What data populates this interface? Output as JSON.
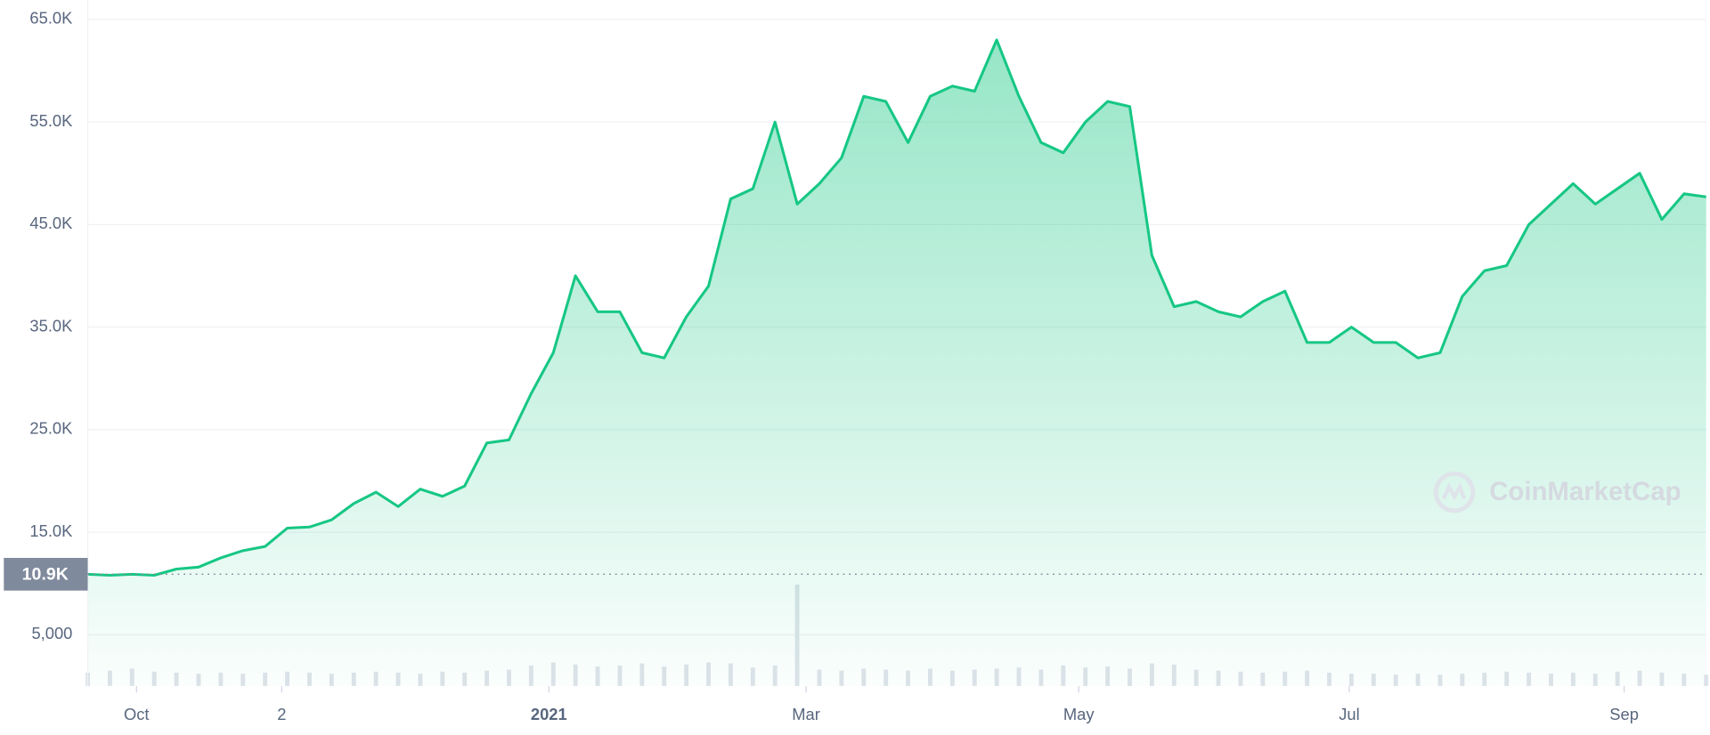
{
  "chart_data": {
    "type": "area",
    "color": "#16c784",
    "volume_color": "#dfe3ea",
    "grid": true,
    "values": [
      10900,
      10800,
      10900,
      10800,
      11400,
      11600,
      12500,
      13200,
      13600,
      15400,
      15500,
      16200,
      17800,
      18900,
      17500,
      19200,
      18500,
      19500,
      23700,
      24000,
      28500,
      32500,
      40000,
      36500,
      36500,
      32500,
      32000,
      36000,
      39000,
      47500,
      48500,
      55000,
      47000,
      49000,
      51500,
      57500,
      57000,
      53000,
      57500,
      58500,
      58000,
      63000,
      57500,
      53000,
      52000,
      55000,
      57000,
      56500,
      42000,
      37000,
      37500,
      36500,
      36000,
      37500,
      38500,
      33500,
      33500,
      35000,
      33500,
      33500,
      32000,
      32500,
      38000,
      40500,
      41000,
      45000,
      47000,
      49000,
      47000,
      48500,
      50000,
      45500,
      48000,
      47700
    ],
    "volume": [
      1300,
      1500,
      1700,
      1400,
      1300,
      1200,
      1300,
      1200,
      1300,
      1400,
      1300,
      1200,
      1300,
      1400,
      1300,
      1200,
      1400,
      1300,
      1500,
      1600,
      2000,
      2300,
      2100,
      1900,
      2000,
      2200,
      1900,
      2100,
      2300,
      2200,
      1800,
      2000,
      9900,
      1600,
      1500,
      1700,
      1600,
      1500,
      1700,
      1500,
      1600,
      1700,
      1800,
      1600,
      2000,
      1800,
      1900,
      1700,
      2200,
      2100,
      1600,
      1500,
      1400,
      1300,
      1400,
      1500,
      1300,
      1200,
      1200,
      1100,
      1200,
      1100,
      1200,
      1300,
      1400,
      1300,
      1200,
      1300,
      1200,
      1400,
      1500,
      1300,
      1200,
      1100
    ],
    "xlim": [
      0,
      73
    ],
    "xticks": [
      {
        "value": 2.2,
        "label": "Oct"
      },
      {
        "value": 8.75,
        "label": "2"
      },
      {
        "value": 20.8,
        "label": "2021"
      },
      {
        "value": 32.4,
        "label": "Mar"
      },
      {
        "value": 44.7,
        "label": "May"
      },
      {
        "value": 56.9,
        "label": "Jul"
      },
      {
        "value": 69.3,
        "label": "Sep"
      }
    ],
    "ylim": [
      0,
      66900
    ],
    "yticks": [
      {
        "value": 5000,
        "label": "5,000"
      },
      {
        "value": 15000,
        "label": "15.0K"
      },
      {
        "value": 25000,
        "label": "25.0K"
      },
      {
        "value": 35000,
        "label": "35.0K"
      },
      {
        "value": 45000,
        "label": "45.0K"
      },
      {
        "value": 55000,
        "label": "55.0K"
      },
      {
        "value": 65000,
        "label": "65.0K"
      }
    ],
    "baseline": 10900,
    "baseline_label": "10.9K",
    "watermark": "CoinMarketCap"
  }
}
